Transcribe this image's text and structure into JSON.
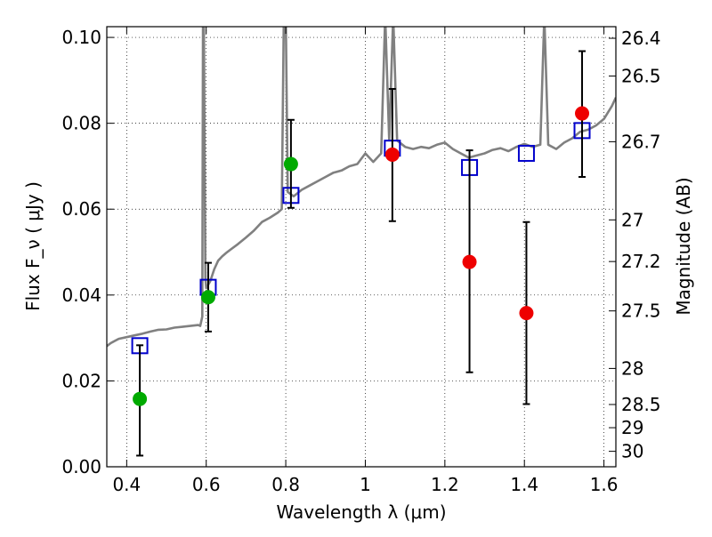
{
  "chart_data": {
    "type": "scatter",
    "xlabel": "Wavelength  λ (μm)",
    "ylabel": "Flux  F_ν  ( μJy )",
    "y2label": "Magnitude (AB)",
    "xlim": [
      0.35,
      1.63
    ],
    "ylim": [
      0.0,
      0.1025
    ],
    "grid": true,
    "x_ticks": [
      0.4,
      0.6,
      0.8,
      1.0,
      1.2,
      1.4,
      1.6
    ],
    "x_tick_labels": [
      "0.4",
      "0.6",
      "0.8",
      "1",
      "1.2",
      "1.4",
      "1.6"
    ],
    "y_ticks": [
      0.0,
      0.02,
      0.04,
      0.06,
      0.08,
      0.1
    ],
    "y_tick_labels": [
      "0.00",
      "0.02",
      "0.04",
      "0.06",
      "0.08",
      "0.10"
    ],
    "y2_ticks": [
      {
        "label": "26.4",
        "flux": 0.0998
      },
      {
        "label": "26.5",
        "flux": 0.091
      },
      {
        "label": "26.7",
        "flux": 0.0757
      },
      {
        "label": "27",
        "flux": 0.0575
      },
      {
        "label": "27.2",
        "flux": 0.0478
      },
      {
        "label": "27.5",
        "flux": 0.0363
      },
      {
        "label": "28",
        "flux": 0.0229
      },
      {
        "label": "28.5",
        "flux": 0.0145
      },
      {
        "label": "29",
        "flux": 0.0091
      },
      {
        "label": "30",
        "flux": 0.0036
      }
    ],
    "series": [
      {
        "kind": "line",
        "color": "#808080",
        "points": [
          [
            0.35,
            0.0281
          ],
          [
            0.36,
            0.0288
          ],
          [
            0.37,
            0.0293
          ],
          [
            0.38,
            0.0298
          ],
          [
            0.4,
            0.0302
          ],
          [
            0.42,
            0.0306
          ],
          [
            0.44,
            0.031
          ],
          [
            0.46,
            0.0315
          ],
          [
            0.48,
            0.0319
          ],
          [
            0.5,
            0.032
          ],
          [
            0.52,
            0.0324
          ],
          [
            0.54,
            0.0326
          ],
          [
            0.56,
            0.0328
          ],
          [
            0.58,
            0.033
          ],
          [
            0.585,
            0.0328
          ],
          [
            0.59,
            0.035
          ],
          [
            0.592,
            0.105
          ],
          [
            0.594,
            0.105
          ],
          [
            0.598,
            0.044
          ],
          [
            0.6,
            0.0416
          ],
          [
            0.61,
            0.0432
          ],
          [
            0.62,
            0.046
          ],
          [
            0.63,
            0.048
          ],
          [
            0.64,
            0.049
          ],
          [
            0.65,
            0.0498
          ],
          [
            0.66,
            0.0505
          ],
          [
            0.68,
            0.0519
          ],
          [
            0.7,
            0.0534
          ],
          [
            0.72,
            0.055
          ],
          [
            0.74,
            0.057
          ],
          [
            0.76,
            0.058
          ],
          [
            0.78,
            0.0592
          ],
          [
            0.79,
            0.06
          ],
          [
            0.795,
            0.105
          ],
          [
            0.8,
            0.105
          ],
          [
            0.805,
            0.064
          ],
          [
            0.82,
            0.063
          ],
          [
            0.84,
            0.0645
          ],
          [
            0.86,
            0.0655
          ],
          [
            0.88,
            0.0665
          ],
          [
            0.9,
            0.0675
          ],
          [
            0.92,
            0.0685
          ],
          [
            0.94,
            0.069
          ],
          [
            0.96,
            0.07
          ],
          [
            0.98,
            0.0705
          ],
          [
            1.0,
            0.073
          ],
          [
            1.02,
            0.071
          ],
          [
            1.04,
            0.073
          ],
          [
            1.05,
            0.105
          ],
          [
            1.06,
            0.076
          ],
          [
            1.07,
            0.105
          ],
          [
            1.08,
            0.076
          ],
          [
            1.1,
            0.0745
          ],
          [
            1.12,
            0.074
          ],
          [
            1.14,
            0.0745
          ],
          [
            1.16,
            0.0742
          ],
          [
            1.18,
            0.075
          ],
          [
            1.2,
            0.0755
          ],
          [
            1.22,
            0.074
          ],
          [
            1.24,
            0.073
          ],
          [
            1.26,
            0.072
          ],
          [
            1.28,
            0.0725
          ],
          [
            1.3,
            0.073
          ],
          [
            1.32,
            0.0738
          ],
          [
            1.34,
            0.0742
          ],
          [
            1.36,
            0.0735
          ],
          [
            1.38,
            0.0745
          ],
          [
            1.4,
            0.0752
          ],
          [
            1.42,
            0.0745
          ],
          [
            1.44,
            0.075
          ],
          [
            1.45,
            0.105
          ],
          [
            1.46,
            0.075
          ],
          [
            1.48,
            0.074
          ],
          [
            1.5,
            0.0755
          ],
          [
            1.52,
            0.0765
          ],
          [
            1.54,
            0.078
          ],
          [
            1.56,
            0.0785
          ],
          [
            1.58,
            0.0795
          ],
          [
            1.6,
            0.081
          ],
          [
            1.62,
            0.084
          ],
          [
            1.63,
            0.086
          ]
        ]
      },
      {
        "kind": "scatter",
        "marker": "open-square",
        "color": "#0000cc",
        "points": [
          [
            0.433,
            0.0282
          ],
          [
            0.605,
            0.0418
          ],
          [
            0.813,
            0.0632
          ],
          [
            1.068,
            0.0742
          ],
          [
            1.262,
            0.0697
          ],
          [
            1.405,
            0.073
          ],
          [
            1.545,
            0.0783
          ]
        ]
      },
      {
        "kind": "scatter",
        "marker": "filled-circle",
        "color": "#00aa00",
        "points": [
          {
            "x": 0.433,
            "y": 0.0158,
            "err_low": 0.0026,
            "err_high": 0.0283
          },
          {
            "x": 0.605,
            "y": 0.0395,
            "err_low": 0.0315,
            "err_high": 0.0475
          },
          {
            "x": 0.813,
            "y": 0.0705,
            "err_low": 0.0603,
            "err_high": 0.0808
          }
        ]
      },
      {
        "kind": "scatter",
        "marker": "filled-circle",
        "color": "#ee0000",
        "points": [
          {
            "x": 1.068,
            "y": 0.0727,
            "err_low": 0.0572,
            "err_high": 0.088
          },
          {
            "x": 1.262,
            "y": 0.0477,
            "err_low": 0.022,
            "err_high": 0.0737
          },
          {
            "x": 1.405,
            "y": 0.0358,
            "err_low": 0.0146,
            "err_high": 0.057
          },
          {
            "x": 1.545,
            "y": 0.0823,
            "err_low": 0.0675,
            "err_high": 0.0968
          }
        ]
      }
    ]
  }
}
